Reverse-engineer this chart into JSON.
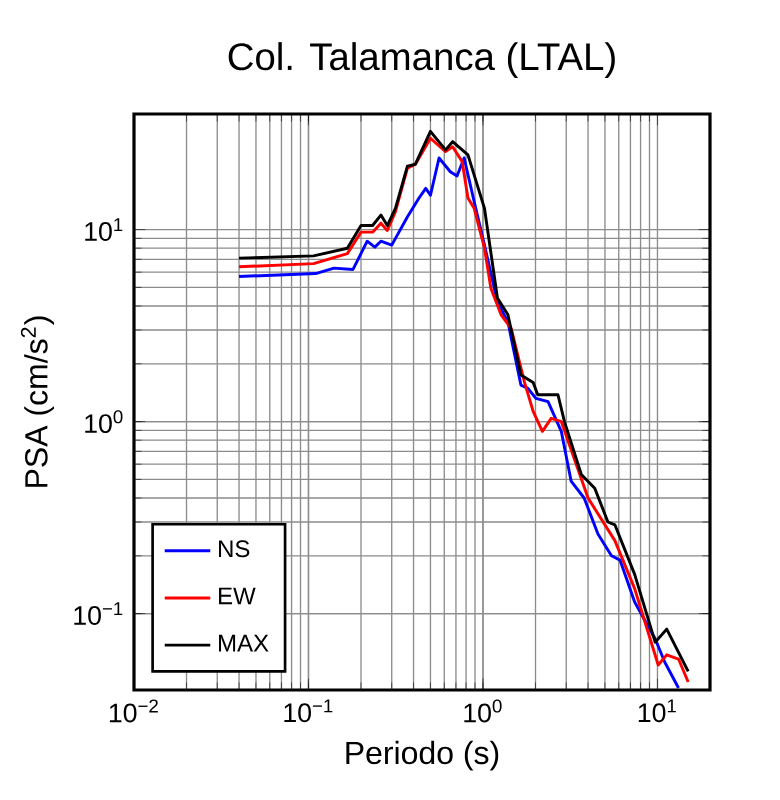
{
  "chart_data": {
    "type": "line",
    "title": "Col. Talamanca (LTAL)",
    "xlabel": "Periodo (s)",
    "ylabel": "PSA (cm/s$^{2}$)",
    "log": "xy",
    "grid": true,
    "legend": "bottom left",
    "marker": "none",
    "line_style": "solid",
    "xlim": [
      0.01,
      20
    ],
    "ylim": [
      0.04,
      40
    ],
    "xticks": [
      {
        "value": 0.01,
        "label": "10$^{−2}$"
      },
      {
        "value": 0.1,
        "label": "10$^{−1}$"
      },
      {
        "value": 1,
        "label": "10$^{0}$"
      },
      {
        "value": 10,
        "label": "10$^{1}$"
      }
    ],
    "yticks": [
      {
        "value": 0.1,
        "label": "10$^{−1}$"
      },
      {
        "value": 1,
        "label": "10$^{0}$"
      },
      {
        "value": 10,
        "label": "10$^{1}$"
      }
    ],
    "series": [
      {
        "name": "NS",
        "color": "#0000ff",
        "x": [
          0.04,
          0.11,
          0.14,
          0.18,
          0.217,
          0.24,
          0.26,
          0.3,
          0.37,
          0.43,
          0.47,
          0.5,
          0.56,
          0.65,
          0.71,
          0.78,
          0.89,
          1.02,
          1.21,
          1.39,
          1.65,
          1.81,
          2.01,
          2.36,
          2.81,
          3.2,
          3.8,
          4.56,
          5.45,
          6.1,
          7.4,
          9.7,
          11,
          13.2
        ],
        "values": [
          5.7,
          5.9,
          6.3,
          6.2,
          8.7,
          8.1,
          8.7,
          8.3,
          11.7,
          14.6,
          16.4,
          15.1,
          23.6,
          20,
          19,
          23.6,
          14,
          8.3,
          4.2,
          3.3,
          1.55,
          1.49,
          1.32,
          1.27,
          0.89,
          0.49,
          0.4,
          0.26,
          0.2,
          0.19,
          0.115,
          0.074,
          0.056,
          0.041
        ]
      },
      {
        "name": "EW",
        "color": "#ff0000",
        "x": [
          0.04,
          0.107,
          0.167,
          0.2,
          0.233,
          0.26,
          0.283,
          0.315,
          0.369,
          0.41,
          0.5,
          0.61,
          0.67,
          0.76,
          0.82,
          0.89,
          1.02,
          1.11,
          1.27,
          1.45,
          1.73,
          1.94,
          2.19,
          2.46,
          2.81,
          4.0,
          5.7,
          7.4,
          10.1,
          11.3,
          13.2,
          15
        ],
        "values": [
          6.4,
          6.65,
          7.5,
          9.7,
          9.7,
          10.8,
          9.9,
          12.4,
          20.9,
          21.9,
          29.9,
          25.5,
          27,
          22.6,
          14.6,
          12.9,
          8.0,
          4.95,
          3.6,
          3.06,
          1.6,
          1.13,
          0.89,
          1.04,
          1.0,
          0.4,
          0.24,
          0.135,
          0.054,
          0.061,
          0.058,
          0.044
        ]
      },
      {
        "name": "MAX",
        "color": "#000000",
        "x": [
          0.04,
          0.107,
          0.167,
          0.2,
          0.233,
          0.26,
          0.283,
          0.315,
          0.369,
          0.41,
          0.5,
          0.61,
          0.67,
          0.82,
          1.02,
          1.21,
          1.39,
          1.65,
          1.94,
          2.06,
          2.69,
          2.93,
          3.66,
          4.37,
          5.2,
          5.7,
          7.4,
          9.7,
          11.3,
          15
        ],
        "values": [
          7.1,
          7.3,
          8.0,
          10.5,
          10.5,
          11.9,
          10.5,
          12.9,
          21.4,
          21.9,
          32.5,
          26,
          28.7,
          24.5,
          12.9,
          4.4,
          3.6,
          1.75,
          1.6,
          1.38,
          1.38,
          1.0,
          0.53,
          0.45,
          0.3,
          0.29,
          0.16,
          0.071,
          0.083,
          0.05
        ]
      }
    ]
  }
}
